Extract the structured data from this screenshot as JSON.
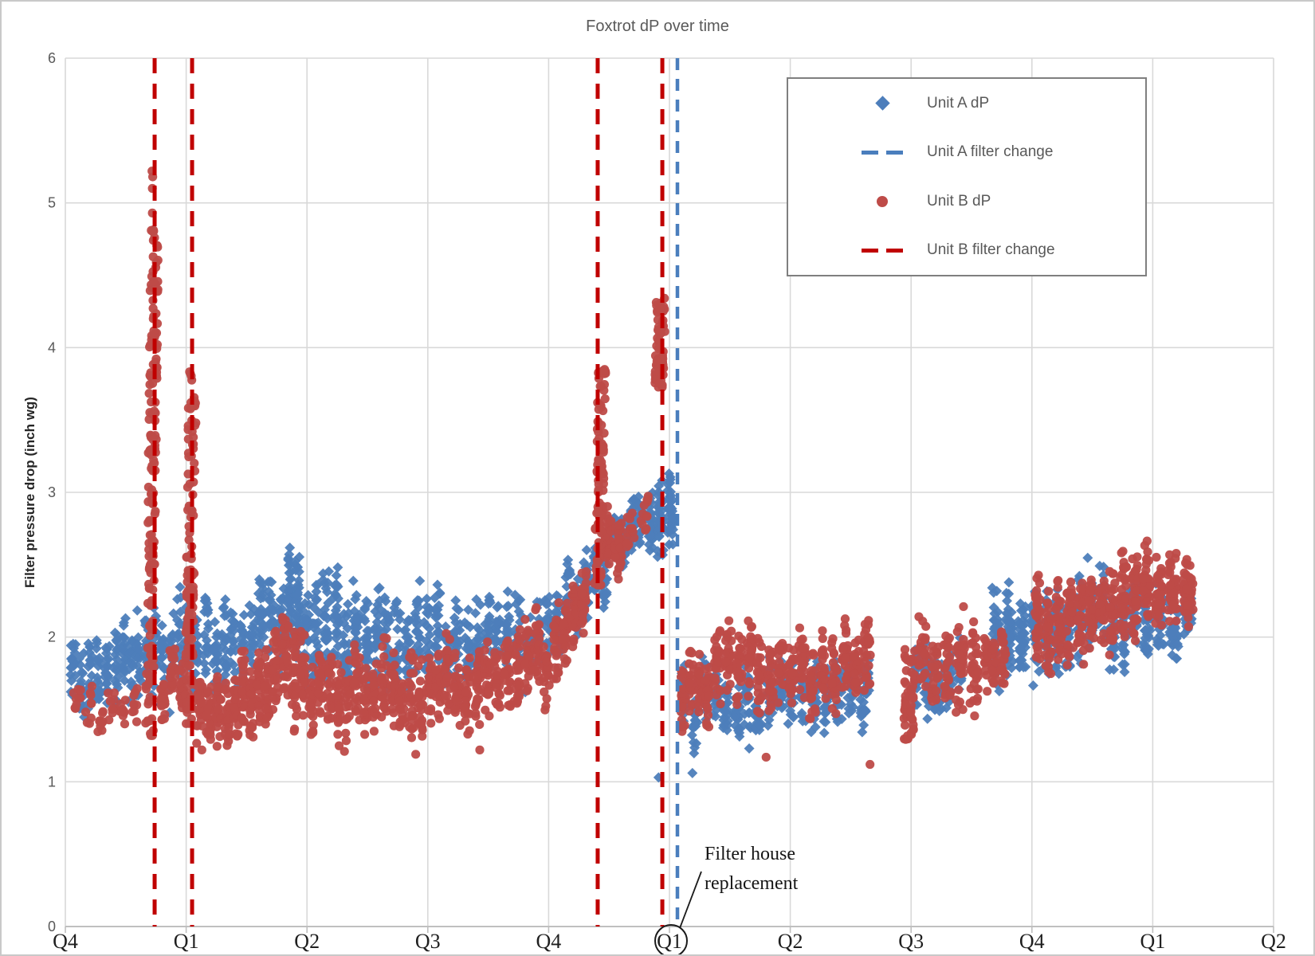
{
  "chart_data": {
    "type": "scatter",
    "title": "Foxtrot dP over time",
    "xlabel": "",
    "ylabel": "Filter pressure drop (inch wg)",
    "ylim": [
      0,
      6
    ],
    "yticks": [
      0,
      1,
      2,
      3,
      4,
      5,
      6
    ],
    "x_unit": "quarters",
    "xticklabels": [
      "Q4",
      "Q1",
      "Q2",
      "Q3",
      "Q4",
      "Q1",
      "Q2",
      "Q3",
      "Q4",
      "Q1",
      "Q2"
    ],
    "circled_xtick_index": 5,
    "grid": true,
    "legend_position": "top-right",
    "series": [
      {
        "name": "Unit A dP",
        "marker": "diamond",
        "color": "#4D7EBB",
        "bands_format": "[t0,t1,yLow0,yHigh0,yLow1,yHigh1,count,stripes] t in quarter units, y in inch wg",
        "bands": [
          [
            0.03,
            0.45,
            1.45,
            1.95,
            1.5,
            2.1,
            120,
            6
          ],
          [
            0.45,
            0.7,
            1.55,
            2.2,
            1.6,
            2.25,
            80,
            4
          ],
          [
            0.7,
            1.05,
            1.45,
            2.3,
            1.6,
            2.3,
            100,
            5
          ],
          [
            1.05,
            1.58,
            1.55,
            2.25,
            1.6,
            2.3,
            150,
            7
          ],
          [
            1.58,
            1.83,
            1.7,
            2.4,
            1.75,
            2.4,
            85,
            3
          ],
          [
            1.83,
            1.95,
            1.85,
            2.73,
            1.8,
            2.6,
            70,
            2
          ],
          [
            1.95,
            2.28,
            1.65,
            2.6,
            1.7,
            2.45,
            110,
            4
          ],
          [
            2.28,
            2.62,
            1.6,
            2.35,
            1.6,
            2.42,
            110,
            4
          ],
          [
            2.62,
            3.12,
            1.6,
            2.42,
            1.65,
            2.4,
            140,
            6
          ],
          [
            3.12,
            3.62,
            1.65,
            2.38,
            1.6,
            2.3,
            130,
            6
          ],
          [
            3.62,
            4.12,
            1.6,
            2.25,
            1.75,
            2.3,
            130,
            6
          ],
          [
            4.12,
            4.5,
            1.9,
            2.45,
            2.25,
            2.8,
            120,
            5
          ],
          [
            4.5,
            4.8,
            2.3,
            2.85,
            2.5,
            3.0,
            110,
            4
          ],
          [
            4.8,
            5.05,
            2.45,
            3.05,
            2.55,
            3.17,
            110,
            3
          ],
          [
            5.08,
            5.6,
            1.25,
            1.85,
            1.3,
            1.8,
            120,
            6
          ],
          [
            5.6,
            6.05,
            1.3,
            1.8,
            1.35,
            1.9,
            110,
            5
          ],
          [
            6.05,
            6.55,
            1.25,
            1.9,
            1.35,
            1.95,
            110,
            5
          ],
          [
            6.55,
            6.68,
            1.35,
            1.95,
            1.4,
            2.0,
            40,
            1
          ],
          [
            7.0,
            7.18,
            1.45,
            2.1,
            1.5,
            2.1,
            55,
            2
          ],
          [
            7.18,
            7.45,
            1.45,
            2.0,
            1.5,
            2.05,
            50,
            3
          ],
          [
            7.65,
            8.08,
            1.5,
            2.3,
            1.75,
            2.47,
            160,
            4
          ],
          [
            8.08,
            8.35,
            1.6,
            2.3,
            1.7,
            2.4,
            90,
            3
          ],
          [
            8.35,
            8.62,
            1.7,
            2.53,
            1.75,
            2.45,
            90,
            3
          ],
          [
            8.62,
            9.0,
            1.75,
            2.4,
            1.85,
            2.45,
            110,
            4
          ],
          [
            9.0,
            9.35,
            1.8,
            2.42,
            1.95,
            2.3,
            100,
            3
          ]
        ],
        "spikes": [],
        "outliers": [
          [
            4.91,
            1.03
          ],
          [
            5.19,
            1.06
          ],
          [
            5.66,
            1.23
          ]
        ]
      },
      {
        "name": "Unit B dP",
        "marker": "circle",
        "color": "#BE4B48",
        "bands": [
          [
            0.05,
            0.62,
            1.3,
            1.7,
            1.35,
            1.72,
            55,
            6
          ],
          [
            0.77,
            1.0,
            1.45,
            1.85,
            1.5,
            1.95,
            65,
            3
          ],
          [
            1.07,
            1.38,
            1.28,
            1.82,
            1.25,
            1.8,
            110,
            4
          ],
          [
            1.38,
            1.7,
            1.25,
            1.85,
            1.3,
            1.9,
            140,
            5
          ],
          [
            1.7,
            1.86,
            1.45,
            2.2,
            1.5,
            2.1,
            70,
            2
          ],
          [
            1.86,
            2.0,
            1.35,
            2.25,
            1.35,
            2.1,
            60,
            2
          ],
          [
            2.0,
            2.3,
            1.3,
            1.9,
            1.3,
            1.95,
            100,
            4
          ],
          [
            2.3,
            2.75,
            1.25,
            1.9,
            1.3,
            1.95,
            150,
            6
          ],
          [
            2.75,
            3.2,
            1.3,
            1.95,
            1.35,
            2.0,
            150,
            6
          ],
          [
            3.2,
            3.7,
            1.35,
            2.0,
            1.45,
            2.05,
            150,
            6
          ],
          [
            3.7,
            4.1,
            1.45,
            2.1,
            1.62,
            2.22,
            130,
            5
          ],
          [
            4.1,
            4.33,
            1.7,
            2.3,
            2.1,
            2.6,
            85,
            3
          ],
          [
            4.45,
            4.62,
            2.35,
            2.85,
            2.45,
            2.9,
            70,
            2
          ],
          [
            4.62,
            4.85,
            2.5,
            2.92,
            2.58,
            2.96,
            26,
            2
          ],
          [
            5.08,
            5.35,
            1.35,
            1.9,
            1.45,
            2.0,
            95,
            4
          ],
          [
            5.35,
            5.8,
            1.45,
            2.05,
            1.5,
            2.15,
            140,
            5
          ],
          [
            5.8,
            6.05,
            1.48,
            2.1,
            1.5,
            2.05,
            75,
            3
          ],
          [
            6.05,
            6.5,
            1.45,
            2.05,
            1.5,
            2.1,
            130,
            5
          ],
          [
            6.5,
            6.68,
            1.5,
            2.05,
            1.55,
            2.1,
            55,
            2
          ],
          [
            6.93,
            7.04,
            1.15,
            1.95,
            1.2,
            2.0,
            55,
            2
          ],
          [
            7.04,
            7.35,
            1.5,
            2.1,
            1.55,
            2.15,
            80,
            3
          ],
          [
            7.35,
            7.58,
            1.45,
            2.25,
            1.5,
            2.2,
            65,
            2
          ],
          [
            7.58,
            7.8,
            1.58,
            2.12,
            1.6,
            2.12,
            60,
            3
          ],
          [
            8.0,
            8.45,
            1.7,
            2.45,
            1.9,
            2.6,
            160,
            5
          ],
          [
            8.45,
            8.8,
            1.9,
            2.6,
            1.95,
            2.62,
            130,
            4
          ],
          [
            8.8,
            9.1,
            1.9,
            2.58,
            2.0,
            2.66,
            110,
            3
          ],
          [
            9.1,
            9.36,
            2.0,
            2.66,
            2.05,
            2.6,
            85,
            2
          ]
        ],
        "spikes_format": "[t,yBottom,yTop,count,leanPx,halfWidthPx]",
        "spikes": [
          [
            0.717,
            1.3,
            4.85,
            170,
            7,
            5
          ],
          [
            1.036,
            1.35,
            3.85,
            130,
            5,
            5
          ],
          [
            4.425,
            2.35,
            3.85,
            110,
            5,
            5
          ],
          [
            4.924,
            3.72,
            4.35,
            70,
            2,
            6
          ]
        ],
        "outliers": [
          [
            1.13,
            1.22
          ],
          [
            2.31,
            1.21
          ],
          [
            2.9,
            1.19
          ],
          [
            3.43,
            1.22
          ],
          [
            5.8,
            1.17
          ],
          [
            6.66,
            1.12
          ],
          [
            0.72,
            4.93
          ],
          [
            0.72,
            5.1
          ],
          [
            0.723,
            5.18
          ],
          [
            0.717,
            5.22
          ]
        ]
      }
    ],
    "events": [
      {
        "name": "Unit A filter change",
        "color": "#4A7EBD",
        "style": "dashed",
        "t": [
          5.066
        ]
      },
      {
        "name": "Unit B filter change",
        "color": "#C00000",
        "style": "dashed",
        "t": [
          0.739,
          1.049,
          4.406,
          4.941
        ]
      }
    ],
    "annotation": {
      "line1": "Filter house",
      "line2": "replacement",
      "points_to": "circled Q1 x-axis label"
    }
  },
  "legend": {
    "items": [
      {
        "label": "Unit A dP",
        "marker": "diamond",
        "color": "#4D7EBB"
      },
      {
        "label": "Unit A filter change",
        "marker": "dashed-line",
        "color": "#4A7EBD"
      },
      {
        "label": "Unit B dP",
        "marker": "circle",
        "color": "#BE4B48"
      },
      {
        "label": "Unit B filter change",
        "marker": "dashed-line",
        "color": "#C00000"
      }
    ]
  },
  "colors": {
    "grid": "#D9D9D9",
    "axis": "#BFBFBF",
    "title_text": "#595959",
    "ytick_text": "#595959",
    "xtick_text": "#1f1f1f"
  }
}
